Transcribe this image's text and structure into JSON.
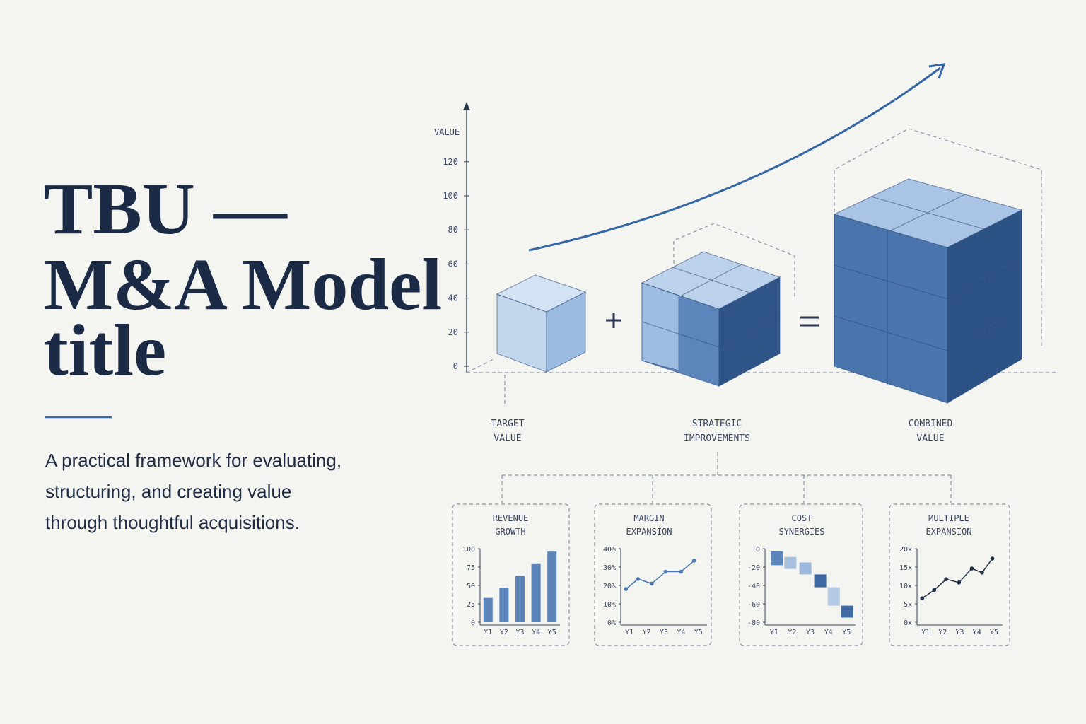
{
  "header": {
    "title": [
      "TBU —",
      "M&A Model",
      "title"
    ],
    "subtitle": [
      "A practical framework for evaluating,",
      "structuring, and creating value",
      "through thoughtful acquisitions."
    ]
  },
  "diagram": {
    "axis_label": "VALUE",
    "yticks": [
      0,
      20,
      40,
      60,
      80,
      100,
      120
    ],
    "blocks": [
      [
        "TARGET",
        "VALUE"
      ],
      [
        "STRATEGIC",
        "IMPROVEMENTS"
      ],
      [
        "COMBINED",
        "VALUE"
      ]
    ]
  },
  "chart_data": [
    {
      "type": "bar",
      "title": [
        "REVENUE",
        "GROWTH"
      ],
      "categories": [
        "Y1",
        "Y2",
        "Y3",
        "Y4",
        "Y5"
      ],
      "values": [
        33,
        47,
        63,
        80,
        96
      ],
      "color": "#5a84ba",
      "ylim": [
        0,
        100
      ],
      "yticks": [
        0,
        25,
        50,
        75,
        100
      ]
    },
    {
      "type": "line",
      "title": [
        "MARGIN",
        "EXPANSION"
      ],
      "x": [
        0.8,
        1.5,
        2.3,
        3.1,
        4.0,
        4.75
      ],
      "values": [
        18,
        23.5,
        21,
        27.5,
        27.5,
        33.5
      ],
      "color": "#4a78b0",
      "xlim": [
        0.5,
        5.5
      ],
      "xticks": [
        {
          "value": 1,
          "label": "Y1"
        },
        {
          "value": 2,
          "label": "Y2"
        },
        {
          "value": 3,
          "label": "Y3"
        },
        {
          "value": 4,
          "label": "Y4"
        },
        {
          "value": 5,
          "label": "Y5"
        }
      ],
      "ylim": [
        0,
        40
      ],
      "yticks": [
        {
          "value": 0,
          "label": "0%"
        },
        {
          "value": 10,
          "label": "10%"
        },
        {
          "value": 20,
          "label": "20%"
        },
        {
          "value": 30,
          "label": "30%"
        },
        {
          "value": 40,
          "label": "40%"
        }
      ]
    },
    {
      "type": "range",
      "title": [
        "COST",
        "SYNERGIES"
      ],
      "x": [
        1.16,
        1.9,
        2.73,
        3.55,
        4.3,
        5.04
      ],
      "high": [
        -3,
        -9,
        -15,
        -28,
        -42,
        -62
      ],
      "low": [
        -18,
        -22,
        -28,
        -42,
        -62,
        -75
      ],
      "colors": [
        "#5b84b8",
        "#a7c0de",
        "#9bb7d9",
        "#3d6aa3",
        "#b3c9e4",
        "#3f6aa2"
      ],
      "xlim": [
        0.5,
        5.5
      ],
      "xticks": [
        {
          "value": 1,
          "label": "Y1"
        },
        {
          "value": 2,
          "label": "Y2"
        },
        {
          "value": 3,
          "label": "Y3"
        },
        {
          "value": 4,
          "label": "Y4"
        },
        {
          "value": 5,
          "label": "Y5"
        }
      ],
      "ylim": [
        -80,
        0
      ],
      "yticks": [
        0,
        -20,
        -40,
        -60,
        -80
      ]
    },
    {
      "type": "line",
      "title": [
        "MULTIPLE",
        "EXPANSION"
      ],
      "x": [
        0.8,
        1.5,
        2.2,
        2.95,
        3.7,
        4.3,
        4.9
      ],
      "values": [
        6.5,
        8.7,
        11.7,
        10.8,
        14.6,
        13.5,
        17.3
      ],
      "color": "#1f2d44",
      "xlim": [
        0.5,
        5.5
      ],
      "xticks": [
        {
          "value": 1,
          "label": "Y1"
        },
        {
          "value": 2,
          "label": "Y2"
        },
        {
          "value": 3,
          "label": "Y3"
        },
        {
          "value": 4,
          "label": "Y4"
        },
        {
          "value": 5,
          "label": "Y5"
        }
      ],
      "ylim": [
        0,
        20
      ],
      "yticks": [
        {
          "value": 0,
          "label": "0x"
        },
        {
          "value": 5,
          "label": "5x"
        },
        {
          "value": 10,
          "label": "10x"
        },
        {
          "value": 15,
          "label": "15x"
        },
        {
          "value": 20,
          "label": "20x"
        }
      ]
    }
  ]
}
